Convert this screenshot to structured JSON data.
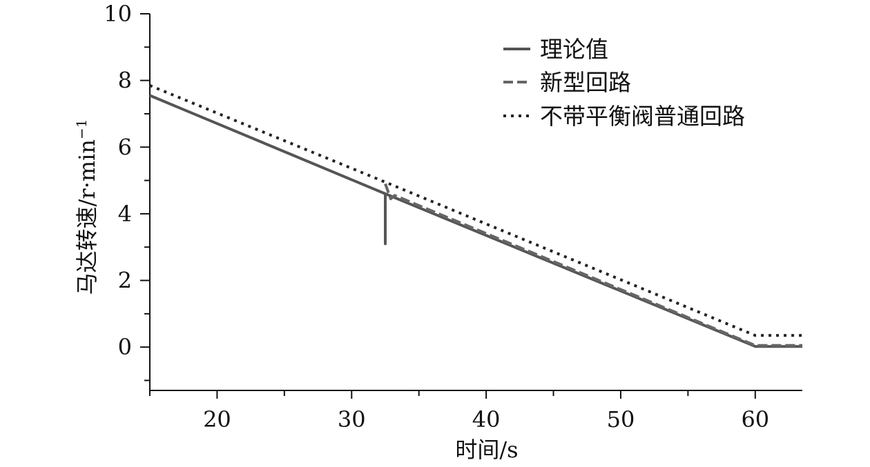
{
  "chart_data": {
    "type": "line",
    "xlabel": "时间/s",
    "ylabel": "马达转速/r·min",
    "ylabel_sup": "−1",
    "xlim": [
      15,
      63.5
    ],
    "ylim": [
      -1.3,
      10
    ],
    "x_ticks": [
      20,
      30,
      40,
      50,
      60
    ],
    "y_ticks": [
      0,
      2,
      4,
      6,
      8,
      10
    ],
    "x_tick_labels": [
      "20",
      "30",
      "40",
      "50",
      "60"
    ],
    "y_tick_labels": [
      "0",
      "2",
      "4",
      "6",
      "8",
      "10"
    ],
    "grid": false,
    "legend_position": "top-right",
    "series": [
      {
        "name": "理论值",
        "style": "solid",
        "color": "#555555",
        "points": [
          [
            15,
            7.55
          ],
          [
            32.5,
            4.6
          ],
          [
            32.5,
            3.1
          ],
          [
            32.5,
            4.6
          ],
          [
            60,
            0.02
          ],
          [
            63.5,
            0.02
          ]
        ]
      },
      {
        "name": "新型回路",
        "style": "dashed",
        "color": "#666666",
        "points": [
          [
            32.5,
            4.9
          ],
          [
            32.9,
            4.45
          ],
          [
            33.2,
            4.55
          ],
          [
            60,
            0.05
          ],
          [
            63.5,
            0.05
          ]
        ]
      },
      {
        "name": "不带平衡阀普通回路",
        "style": "dotted",
        "color": "#222222",
        "points": [
          [
            15,
            7.85
          ],
          [
            32.5,
            4.95
          ],
          [
            60,
            0.35
          ],
          [
            63.5,
            0.35
          ]
        ]
      }
    ]
  }
}
